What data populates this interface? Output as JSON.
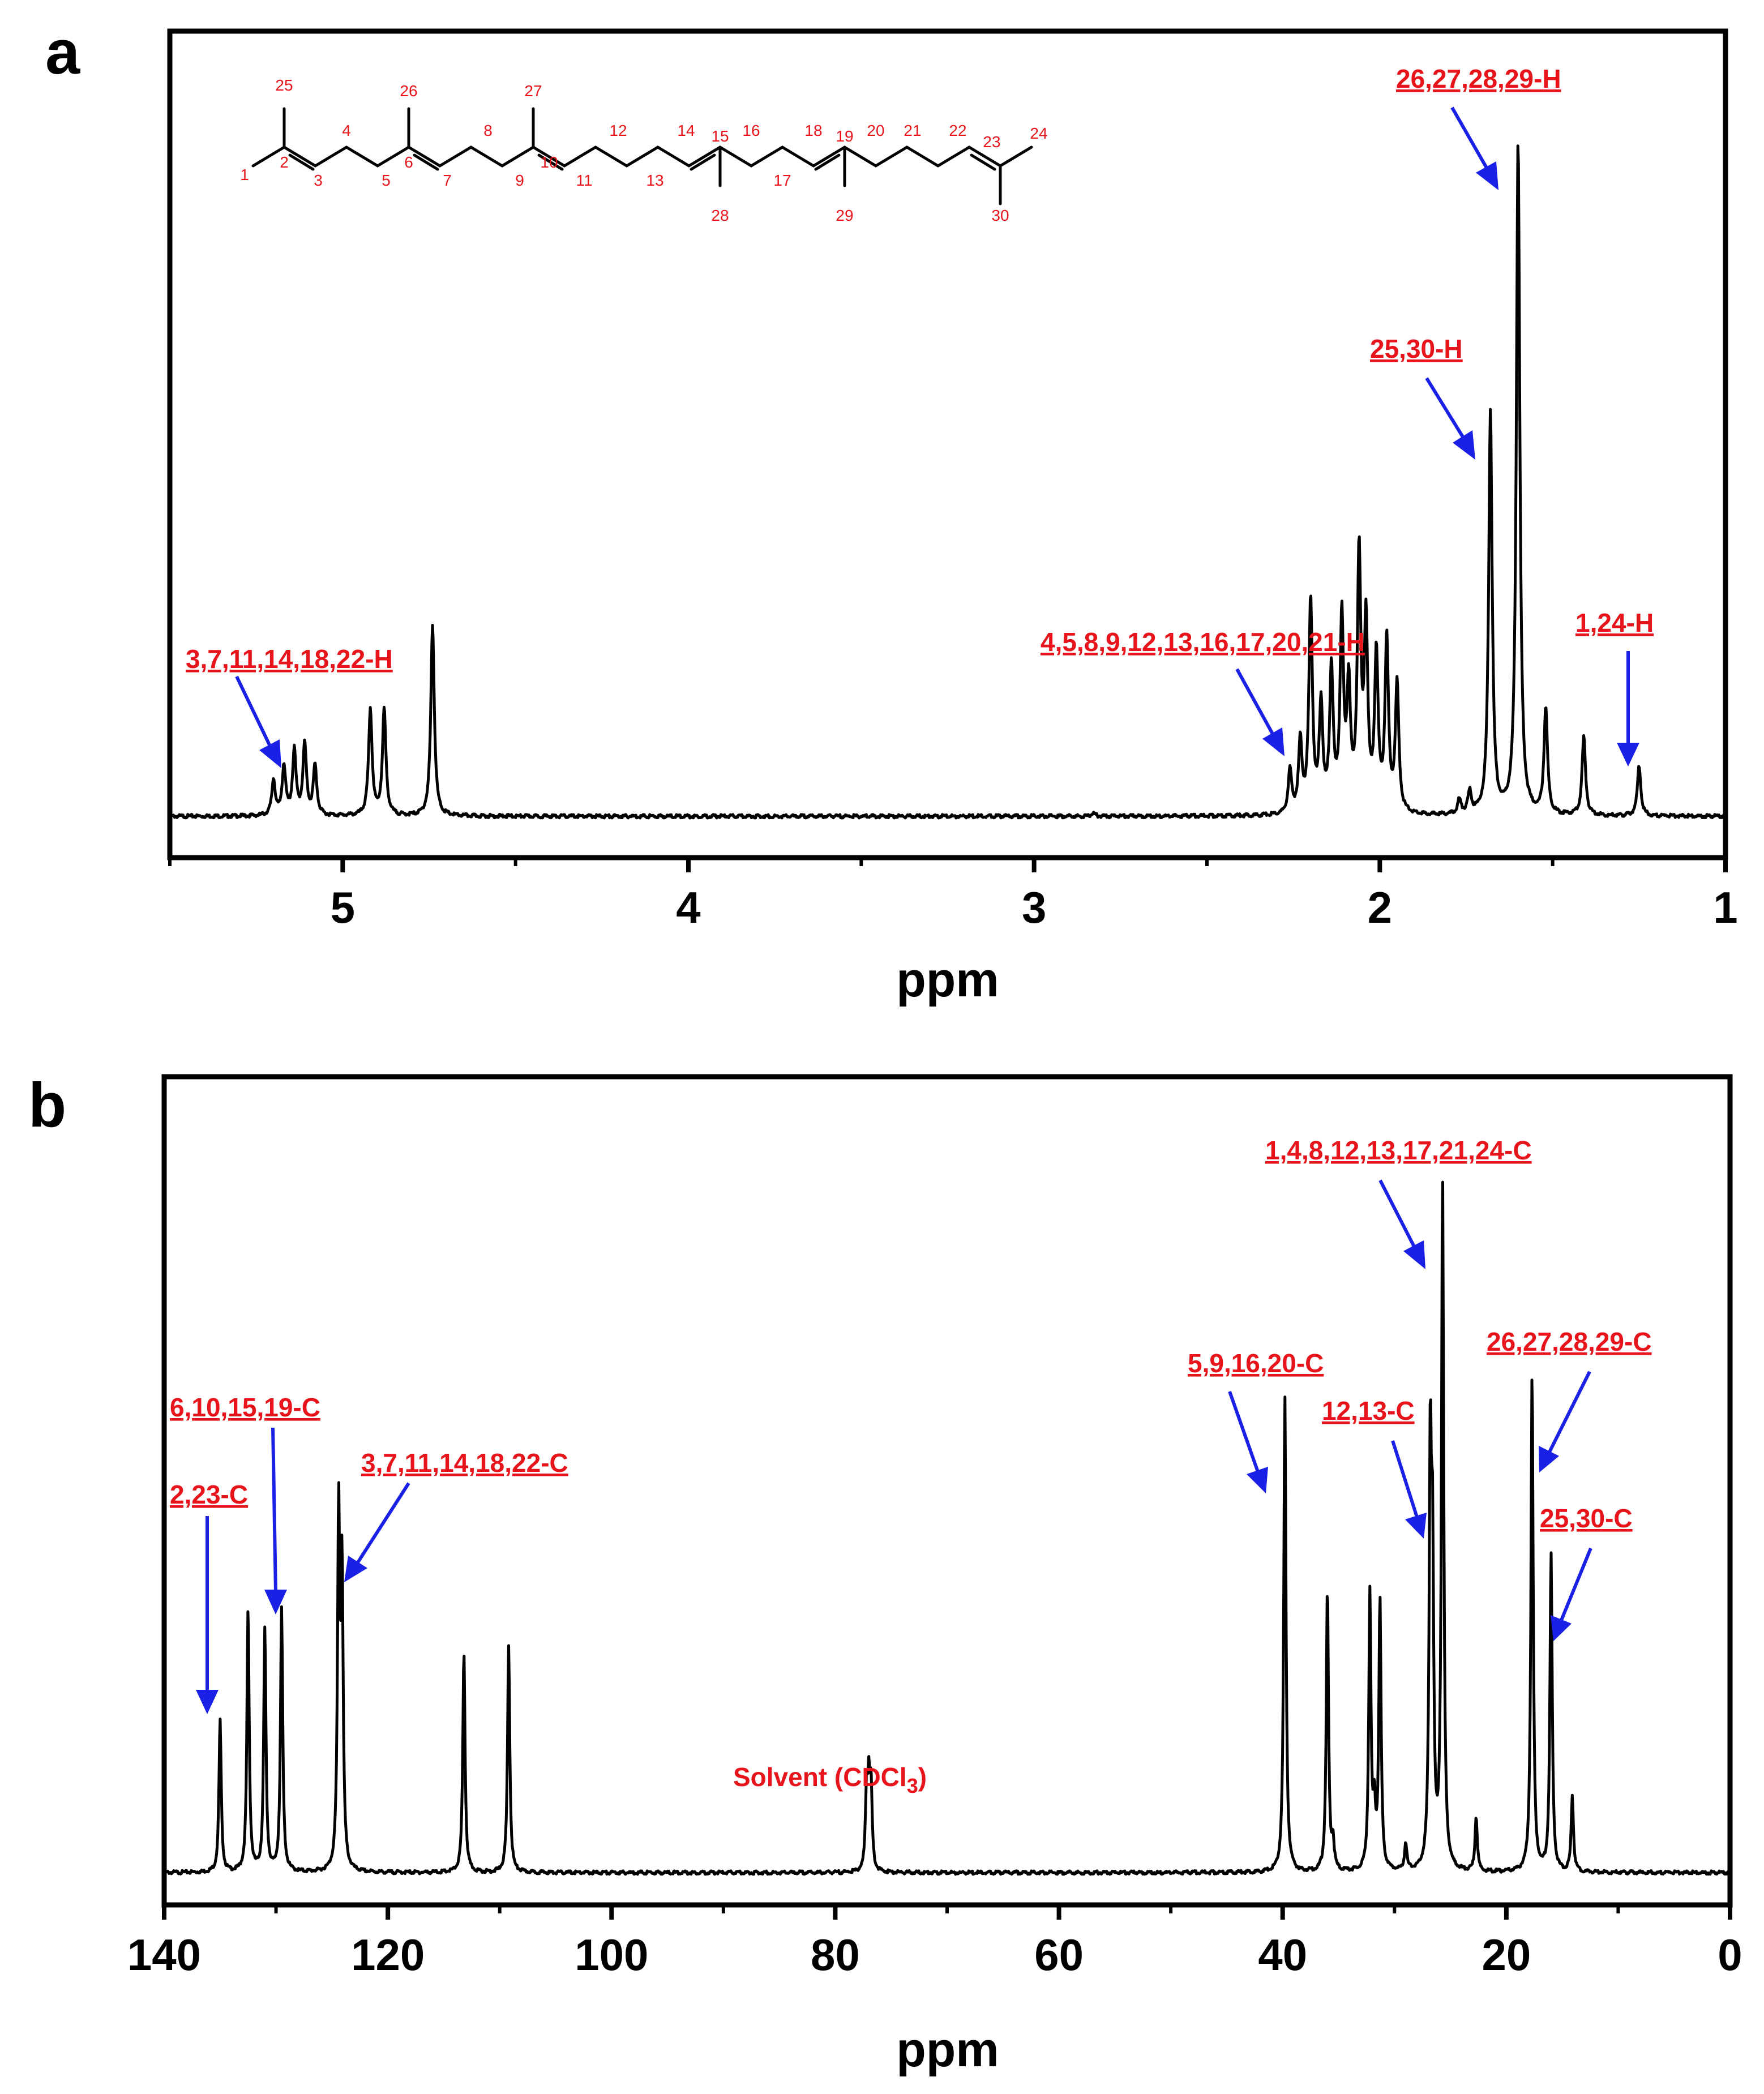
{
  "chart_data": [
    {
      "panel": "a",
      "type": "line",
      "xlabel": "ppm",
      "ylabel": "",
      "xlim": [
        5.5,
        1
      ],
      "x_ticks": [
        "5",
        "4",
        "3",
        "2",
        "1"
      ],
      "baseline": 0.02,
      "peaks": [
        {
          "x": 5.2,
          "h": 0.05
        },
        {
          "x": 5.17,
          "h": 0.07
        },
        {
          "x": 5.14,
          "h": 0.09
        },
        {
          "x": 5.11,
          "h": 0.1
        },
        {
          "x": 5.08,
          "h": 0.07
        },
        {
          "x": 4.92,
          "h": 0.15
        },
        {
          "x": 4.88,
          "h": 0.15
        },
        {
          "x": 4.74,
          "h": 0.27
        },
        {
          "x": 2.83,
          "h": 0.005
        },
        {
          "x": 2.26,
          "h": 0.06
        },
        {
          "x": 2.23,
          "h": 0.1
        },
        {
          "x": 2.2,
          "h": 0.3
        },
        {
          "x": 2.17,
          "h": 0.15
        },
        {
          "x": 2.14,
          "h": 0.2
        },
        {
          "x": 2.11,
          "h": 0.27
        },
        {
          "x": 2.09,
          "h": 0.17
        },
        {
          "x": 2.06,
          "h": 0.36
        },
        {
          "x": 2.04,
          "h": 0.26
        },
        {
          "x": 2.01,
          "h": 0.22
        },
        {
          "x": 1.98,
          "h": 0.24
        },
        {
          "x": 1.95,
          "h": 0.18
        },
        {
          "x": 1.77,
          "h": 0.02
        },
        {
          "x": 1.74,
          "h": 0.03
        },
        {
          "x": 1.68,
          "h": 0.57
        },
        {
          "x": 1.6,
          "h": 0.95
        },
        {
          "x": 1.52,
          "h": 0.15
        },
        {
          "x": 1.41,
          "h": 0.11
        },
        {
          "x": 1.25,
          "h": 0.07
        }
      ],
      "annotations": [
        {
          "label": "26,27,28,29-H"
        },
        {
          "label": "25,30-H"
        },
        {
          "label": "1,24-H"
        },
        {
          "label": "4,5,8,9,12,13,16,17,20,21-H"
        },
        {
          "label": "3,7,11,14,18,22-H"
        }
      ],
      "structure_numbers": [
        "1",
        "2",
        "3",
        "4",
        "5",
        "6",
        "7",
        "8",
        "9",
        "10",
        "11",
        "12",
        "13",
        "14",
        "15",
        "16",
        "17",
        "18",
        "19",
        "20",
        "21",
        "22",
        "23",
        "24",
        "25",
        "26",
        "27",
        "28",
        "29",
        "30"
      ]
    },
    {
      "panel": "b",
      "type": "line",
      "xlabel": "ppm",
      "ylabel": "",
      "xlim": [
        140,
        0
      ],
      "x_ticks": [
        "140",
        "120",
        "100",
        "80",
        "60",
        "40",
        "20",
        "0"
      ],
      "baseline": 0.02,
      "peaks": [
        {
          "x": 135.0,
          "h": 0.22
        },
        {
          "x": 132.5,
          "h": 0.38
        },
        {
          "x": 131.0,
          "h": 0.35
        },
        {
          "x": 129.5,
          "h": 0.38
        },
        {
          "x": 124.4,
          "h": 0.51
        },
        {
          "x": 124.1,
          "h": 0.42
        },
        {
          "x": 113.2,
          "h": 0.32
        },
        {
          "x": 109.2,
          "h": 0.33
        },
        {
          "x": 77.2,
          "h": 0.11
        },
        {
          "x": 77.0,
          "h": 0.11
        },
        {
          "x": 76.8,
          "h": 0.11
        },
        {
          "x": 39.8,
          "h": 0.69
        },
        {
          "x": 36.0,
          "h": 0.41
        },
        {
          "x": 35.5,
          "h": 0.04
        },
        {
          "x": 32.2,
          "h": 0.4
        },
        {
          "x": 31.8,
          "h": 0.08
        },
        {
          "x": 31.3,
          "h": 0.39
        },
        {
          "x": 29.0,
          "h": 0.04
        },
        {
          "x": 26.8,
          "h": 0.58
        },
        {
          "x": 26.6,
          "h": 0.41
        },
        {
          "x": 25.7,
          "h": 1.0
        },
        {
          "x": 22.7,
          "h": 0.08
        },
        {
          "x": 17.7,
          "h": 0.72
        },
        {
          "x": 16.0,
          "h": 0.46
        },
        {
          "x": 14.1,
          "h": 0.11
        }
      ],
      "annotations": [
        {
          "label": "1,4,8,12,13,17,21,24-C"
        },
        {
          "label": "26,27,28,29-C"
        },
        {
          "label": "5,9,16,20-C"
        },
        {
          "label": "12,13-C"
        },
        {
          "label": "25,30-C"
        },
        {
          "label": "6,10,15,19-C"
        },
        {
          "label": "2,23-C"
        },
        {
          "label": "3,7,11,14,18,22-C"
        }
      ],
      "solvent_label": "Solvent (CDCl",
      "solvent_subscript": "3",
      "solvent_close": ")"
    }
  ]
}
